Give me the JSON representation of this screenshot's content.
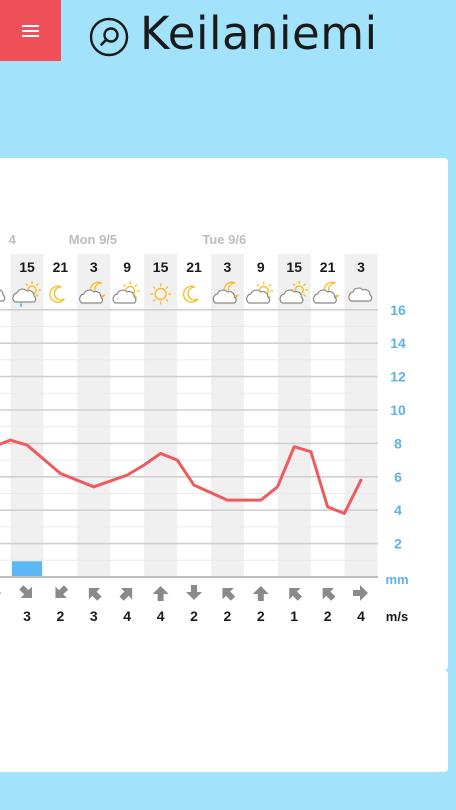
{
  "header": {
    "title": "Keilaniemi",
    "menu_icon": "hamburger-icon",
    "search_icon": "search-icon",
    "menu_color": "#ee5058",
    "background_color": "#a2e2fa"
  },
  "chart_data": {
    "type": "line",
    "day_labels": [
      {
        "label": "4",
        "hour_index": -0.55
      },
      {
        "label": "Mon 9/5",
        "hour_index": 1.25
      },
      {
        "label": "Tue 9/6",
        "hour_index": 5.25
      }
    ],
    "hours": [
      "15",
      "21",
      "3",
      "9",
      "15",
      "21",
      "3",
      "9",
      "15",
      "21",
      "3"
    ],
    "weather_icons": [
      "partly-cloudy-rain-day-icon",
      "moon-icon",
      "partly-cloudy-night-icon",
      "partly-sunny-icon",
      "sun-icon",
      "moon-icon",
      "partly-cloudy-night-icon",
      "partly-sunny-icon",
      "partly-cloudy-day-icon",
      "partly-cloudy-night-icon",
      "cloud-icon"
    ],
    "x_hours_since_start": [
      -1,
      -0.5,
      0,
      1,
      2,
      3,
      3.5,
      4,
      4.5,
      5,
      6,
      6.5,
      7,
      7.5,
      8,
      8.5,
      9,
      9.5,
      10
    ],
    "temperature": [
      7.8,
      8.2,
      7.9,
      6.2,
      5.4,
      6.1,
      6.7,
      7.4,
      7.0,
      5.5,
      4.6,
      4.6,
      4.6,
      5.4,
      7.8,
      7.5,
      4.2,
      3.8,
      5.8
    ],
    "precipitation_mm": [
      1,
      0,
      0,
      0,
      0,
      0,
      0,
      0,
      0,
      0,
      0
    ],
    "wind_speed_ms": [
      "3",
      "2",
      "3",
      "4",
      "4",
      "2",
      "2",
      "2",
      "1",
      "2",
      "4"
    ],
    "wind_direction_deg": [
      225,
      315,
      45,
      135,
      90,
      270,
      45,
      90,
      45,
      45,
      180
    ],
    "y_ticks": [
      "16",
      "14",
      "12",
      "10",
      "8",
      "6",
      "4",
      "2"
    ],
    "ylim": [
      0,
      16
    ],
    "precip_unit": "mm",
    "wind_unit": "m/s",
    "line_color": "#ef5a5f",
    "precip_color": "#5cb7f4",
    "axis_label_color": "#5cb3e8",
    "grid": true
  }
}
